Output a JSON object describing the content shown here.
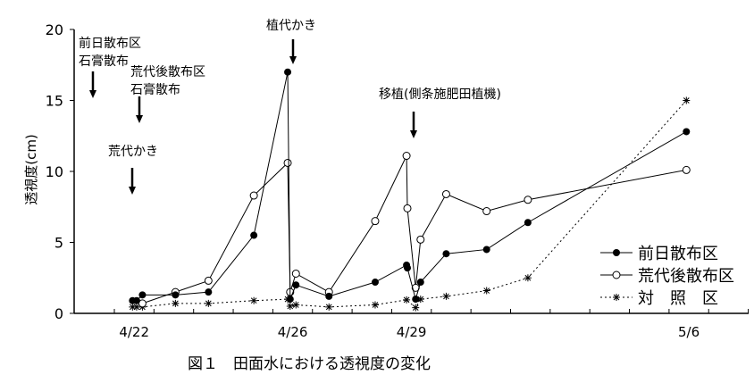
{
  "chart_data": {
    "type": "line",
    "title": "",
    "caption": "図１　田面水における透視度の変化",
    "xlabel": "",
    "ylabel": "透視度(cm)",
    "ylim": [
      0,
      20
    ],
    "yticks": [
      0,
      5,
      10,
      15,
      20
    ],
    "xticklabels": [
      {
        "label": "4/22",
        "date": "4/22"
      },
      {
        "label": "4/26",
        "date": "4/26"
      },
      {
        "label": "4/29",
        "date": "4/29"
      },
      {
        "label": "5/6",
        "date": "5/6"
      }
    ],
    "xrange_dates": [
      "4/22",
      "5/8"
    ],
    "grid": false,
    "legend_position": "bottom-right",
    "series": [
      {
        "name": "前日散布区",
        "marker": "filled-circle",
        "line": "solid",
        "points": [
          [
            "4/22 11:00",
            0.9
          ],
          [
            "4/22 13:30",
            0.9
          ],
          [
            "4/22 17:00",
            1.3
          ],
          [
            "4/23 13:00",
            1.3
          ],
          [
            "4/24 09:00",
            1.5
          ],
          [
            "4/25 12:30",
            5.5
          ],
          [
            "4/26 09:00",
            17.0
          ],
          [
            "4/26 10:30",
            1.0
          ],
          [
            "4/26 14:00",
            2.0
          ],
          [
            "4/27 10:00",
            1.2
          ],
          [
            "4/28 14:00",
            2.2
          ],
          [
            "4/29 09:00",
            3.4
          ],
          [
            "4/29 09:30",
            3.2
          ],
          [
            "4/29 14:30",
            1.0
          ],
          [
            "4/29 17:30",
            2.2
          ],
          [
            "4/30 09:00",
            4.2
          ],
          [
            "5/1 09:30",
            4.5
          ],
          [
            "5/2 10:30",
            6.4
          ],
          [
            "5/6 10:30",
            12.8
          ]
        ]
      },
      {
        "name": "荒代後散布区",
        "marker": "open-circle",
        "line": "solid",
        "points": [
          [
            "4/22 17:00",
            0.7
          ],
          [
            "4/23 13:00",
            1.5
          ],
          [
            "4/24 09:00",
            2.3
          ],
          [
            "4/25 12:30",
            8.3
          ],
          [
            "4/26 09:00",
            10.6
          ],
          [
            "4/26 10:30",
            1.5
          ],
          [
            "4/26 14:00",
            2.8
          ],
          [
            "4/27 10:00",
            1.5
          ],
          [
            "4/28 14:00",
            6.5
          ],
          [
            "4/29 09:00",
            11.1
          ],
          [
            "4/29 09:30",
            7.4
          ],
          [
            "4/29 14:30",
            1.8
          ],
          [
            "4/29 17:30",
            5.2
          ],
          [
            "4/30 09:00",
            8.4
          ],
          [
            "5/1 09:30",
            7.2
          ],
          [
            "5/2 10:30",
            8.0
          ],
          [
            "5/6 10:30",
            10.1
          ]
        ]
      },
      {
        "name": "対　照　区",
        "marker": "asterisk",
        "line": "dotted",
        "points": [
          [
            "4/22 11:00",
            0.45
          ],
          [
            "4/22 13:30",
            0.45
          ],
          [
            "4/22 17:00",
            0.45
          ],
          [
            "4/23 13:00",
            0.7
          ],
          [
            "4/24 09:00",
            0.7
          ],
          [
            "4/25 12:30",
            0.9
          ],
          [
            "4/26 09:00",
            1.0
          ],
          [
            "4/26 10:30",
            0.5
          ],
          [
            "4/26 14:00",
            0.6
          ],
          [
            "4/27 10:00",
            0.45
          ],
          [
            "4/28 14:00",
            0.6
          ],
          [
            "4/29 09:00",
            0.95
          ],
          [
            "4/29 14:30",
            0.4
          ],
          [
            "4/29 17:30",
            1.0
          ],
          [
            "4/30 09:00",
            1.2
          ],
          [
            "5/1 09:30",
            1.6
          ],
          [
            "5/2 10:30",
            2.5
          ],
          [
            "5/6 10:30",
            15.0
          ]
        ]
      }
    ],
    "annotations": [
      {
        "lines": [
          "前日散布区",
          "石膏散布"
        ],
        "arrow": true
      },
      {
        "lines": [
          "荒代後散布区",
          "石膏散布"
        ],
        "arrow": true
      },
      {
        "lines": [
          "荒代かき"
        ],
        "arrow": true
      },
      {
        "lines": [
          "植代かき"
        ],
        "arrow": true
      },
      {
        "lines": [
          "移植(側条施肥田植機)"
        ],
        "arrow": true
      }
    ]
  }
}
